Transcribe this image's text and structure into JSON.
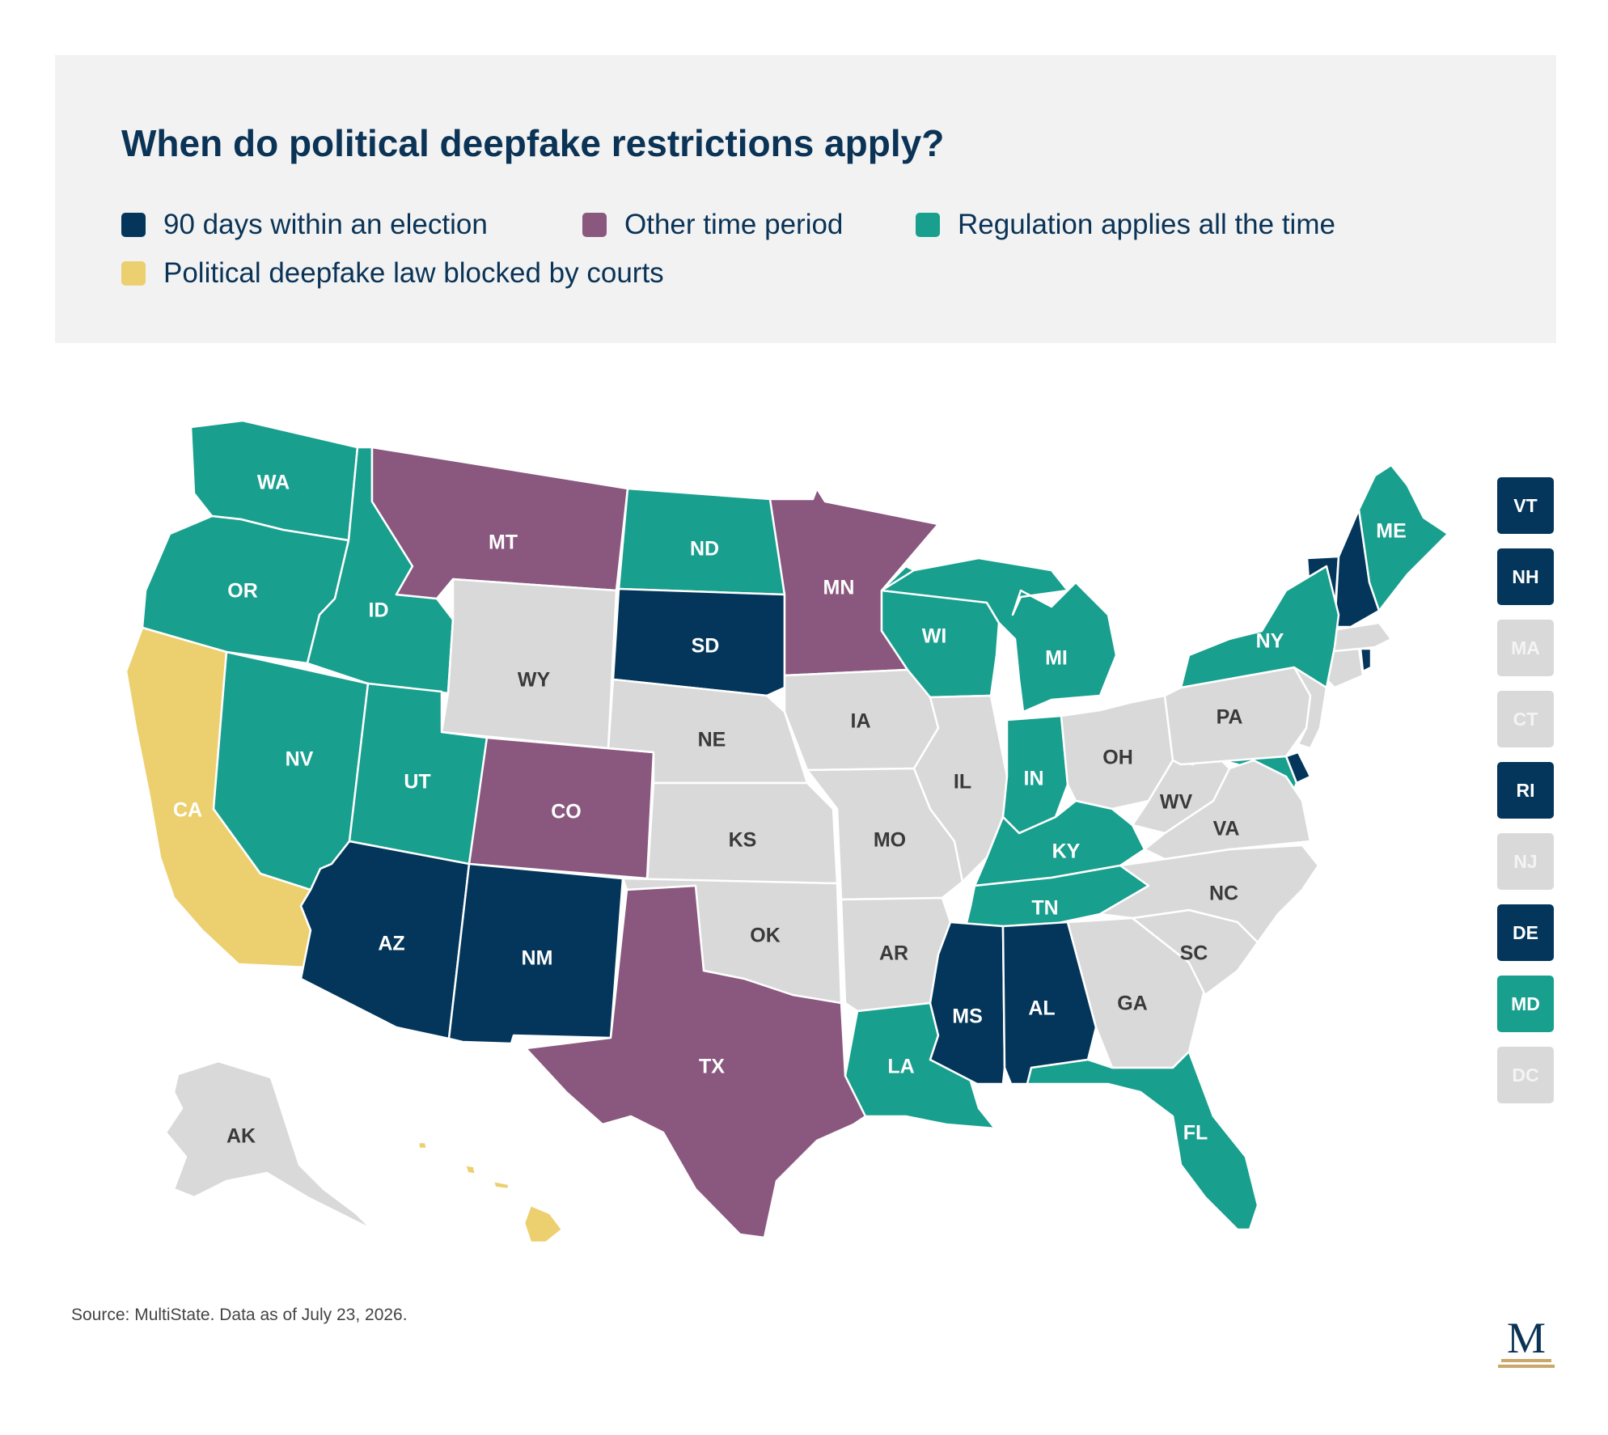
{
  "title": "When do political deepfake restrictions apply?",
  "legend": [
    {
      "key": "election90",
      "label": "90 days within an election",
      "color": "#03365a"
    },
    {
      "key": "other",
      "label": "Other time period",
      "color": "#8a577e"
    },
    {
      "key": "always",
      "label": "Regulation applies all the time",
      "color": "#189f8e"
    },
    {
      "key": "blocked",
      "label": "Political deepfake law blocked by courts",
      "color": "#ecd06f"
    }
  ],
  "no_law_color": "#d9d9d9",
  "states": [
    {
      "abbr": "WA",
      "category": "always"
    },
    {
      "abbr": "OR",
      "category": "always"
    },
    {
      "abbr": "CA",
      "category": "blocked"
    },
    {
      "abbr": "ID",
      "category": "always"
    },
    {
      "abbr": "NV",
      "category": "always"
    },
    {
      "abbr": "MT",
      "category": "other"
    },
    {
      "abbr": "WY",
      "category": "none"
    },
    {
      "abbr": "UT",
      "category": "always"
    },
    {
      "abbr": "AZ",
      "category": "election90"
    },
    {
      "abbr": "CO",
      "category": "other"
    },
    {
      "abbr": "NM",
      "category": "election90"
    },
    {
      "abbr": "ND",
      "category": "always"
    },
    {
      "abbr": "SD",
      "category": "election90"
    },
    {
      "abbr": "NE",
      "category": "none"
    },
    {
      "abbr": "KS",
      "category": "none"
    },
    {
      "abbr": "OK",
      "category": "none"
    },
    {
      "abbr": "TX",
      "category": "other"
    },
    {
      "abbr": "MN",
      "category": "other"
    },
    {
      "abbr": "IA",
      "category": "none"
    },
    {
      "abbr": "MO",
      "category": "none"
    },
    {
      "abbr": "AR",
      "category": "none"
    },
    {
      "abbr": "LA",
      "category": "always"
    },
    {
      "abbr": "WI",
      "category": "always"
    },
    {
      "abbr": "IL",
      "category": "none"
    },
    {
      "abbr": "MI",
      "category": "always"
    },
    {
      "abbr": "IN",
      "category": "always"
    },
    {
      "abbr": "OH",
      "category": "none"
    },
    {
      "abbr": "KY",
      "category": "always"
    },
    {
      "abbr": "TN",
      "category": "always"
    },
    {
      "abbr": "MS",
      "category": "election90"
    },
    {
      "abbr": "AL",
      "category": "election90"
    },
    {
      "abbr": "GA",
      "category": "none"
    },
    {
      "abbr": "FL",
      "category": "always"
    },
    {
      "abbr": "SC",
      "category": "none"
    },
    {
      "abbr": "NC",
      "category": "none"
    },
    {
      "abbr": "VA",
      "category": "none"
    },
    {
      "abbr": "WV",
      "category": "none"
    },
    {
      "abbr": "PA",
      "category": "none"
    },
    {
      "abbr": "NY",
      "category": "always"
    },
    {
      "abbr": "ME",
      "category": "always"
    },
    {
      "abbr": "AK",
      "category": "none"
    },
    {
      "abbr": "HI",
      "category": "blocked"
    }
  ],
  "small_states": [
    {
      "abbr": "VT",
      "category": "election90"
    },
    {
      "abbr": "NH",
      "category": "election90"
    },
    {
      "abbr": "MA",
      "category": "none"
    },
    {
      "abbr": "CT",
      "category": "none"
    },
    {
      "abbr": "RI",
      "category": "election90"
    },
    {
      "abbr": "NJ",
      "category": "none"
    },
    {
      "abbr": "DE",
      "category": "election90"
    },
    {
      "abbr": "MD",
      "category": "always"
    },
    {
      "abbr": "DC",
      "category": "none"
    }
  ],
  "source": "Source: MultiState. Data as of July 23, 2026.",
  "logo": {
    "letter": "M",
    "color": "#0a3356",
    "accent": "#c9a86a"
  }
}
